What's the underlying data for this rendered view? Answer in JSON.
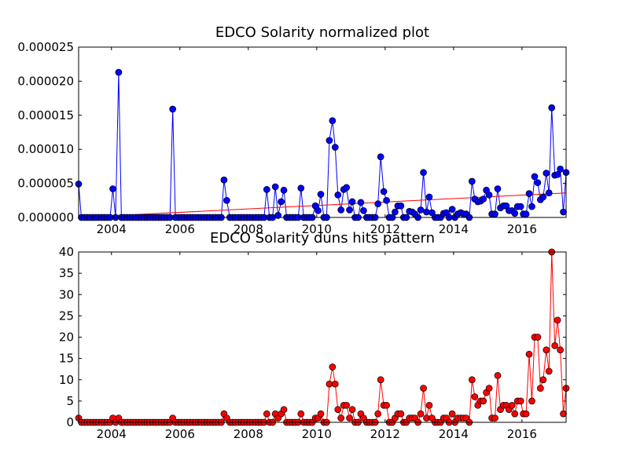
{
  "chart_data": [
    {
      "type": "line",
      "title": "EDCO Solarity normalized plot",
      "x": [
        2003.04,
        2003.12,
        2003.21,
        2003.29,
        2003.37,
        2003.46,
        2003.54,
        2003.62,
        2003.71,
        2003.79,
        2003.87,
        2003.96,
        2004.04,
        2004.12,
        2004.21,
        2004.29,
        2004.37,
        2004.46,
        2004.54,
        2004.62,
        2004.71,
        2004.79,
        2004.87,
        2004.96,
        2005.04,
        2005.12,
        2005.21,
        2005.29,
        2005.37,
        2005.46,
        2005.54,
        2005.62,
        2005.71,
        2005.79,
        2005.87,
        2005.96,
        2006.04,
        2006.12,
        2006.21,
        2006.29,
        2006.37,
        2006.46,
        2006.54,
        2006.62,
        2006.71,
        2006.79,
        2006.87,
        2006.96,
        2007.04,
        2007.12,
        2007.21,
        2007.29,
        2007.37,
        2007.46,
        2007.54,
        2007.62,
        2007.71,
        2007.79,
        2007.87,
        2007.96,
        2008.04,
        2008.12,
        2008.21,
        2008.29,
        2008.37,
        2008.46,
        2008.54,
        2008.62,
        2008.71,
        2008.79,
        2008.87,
        2008.96,
        2009.04,
        2009.12,
        2009.21,
        2009.29,
        2009.37,
        2009.46,
        2009.54,
        2009.62,
        2009.71,
        2009.79,
        2009.87,
        2009.96,
        2010.04,
        2010.12,
        2010.21,
        2010.29,
        2010.37,
        2010.46,
        2010.54,
        2010.62,
        2010.71,
        2010.79,
        2010.87,
        2010.96,
        2011.04,
        2011.12,
        2011.21,
        2011.29,
        2011.37,
        2011.46,
        2011.54,
        2011.62,
        2011.71,
        2011.79,
        2011.87,
        2011.96,
        2012.04,
        2012.12,
        2012.21,
        2012.29,
        2012.37,
        2012.46,
        2012.54,
        2012.62,
        2012.71,
        2012.79,
        2012.87,
        2012.96,
        2013.04,
        2013.12,
        2013.21,
        2013.29,
        2013.37,
        2013.46,
        2013.54,
        2013.62,
        2013.71,
        2013.79,
        2013.87,
        2013.96,
        2014.04,
        2014.12,
        2014.21,
        2014.29,
        2014.37,
        2014.46,
        2014.54,
        2014.62,
        2014.71,
        2014.79,
        2014.87,
        2014.96,
        2015.04,
        2015.12,
        2015.21,
        2015.29,
        2015.37,
        2015.46,
        2015.54,
        2015.62,
        2015.71,
        2015.79,
        2015.87,
        2015.96,
        2016.04,
        2016.12,
        2016.21,
        2016.29,
        2016.37,
        2016.46,
        2016.54,
        2016.62,
        2016.71,
        2016.79,
        2016.87,
        2016.96,
        2017.04,
        2017.12,
        2017.21,
        2017.29
      ],
      "series": [
        {
          "color": "#0000ff",
          "values": [
            4.9e-06,
            0,
            0,
            0,
            0,
            0,
            0,
            0,
            0,
            0,
            0,
            0,
            4.2e-06,
            0,
            2.13e-05,
            0,
            0,
            0,
            0,
            0,
            0,
            0,
            0,
            0,
            0,
            0,
            0,
            0,
            0,
            0,
            0,
            0,
            0,
            1.59e-05,
            0,
            0,
            0,
            0,
            0,
            0,
            0,
            0,
            0,
            0,
            0,
            0,
            0,
            0,
            0,
            0,
            0,
            5.5e-06,
            2.5e-06,
            0,
            0,
            0,
            0,
            0,
            0,
            0,
            0,
            0,
            0,
            0,
            0,
            0,
            4.1e-06,
            0,
            0,
            4.5e-06,
            3e-07,
            2.3e-06,
            4e-06,
            0,
            0,
            0,
            0,
            0,
            4.3e-06,
            0,
            0,
            0,
            0,
            1.7e-06,
            1e-06,
            3.4e-06,
            0,
            0,
            1.13e-05,
            1.42e-05,
            1.03e-05,
            3.3e-06,
            1.1e-06,
            4.1e-06,
            4.4e-06,
            1.1e-06,
            2.3e-06,
            0,
            0,
            2.2e-06,
            1e-06,
            0,
            0,
            0,
            0,
            2e-06,
            8.9e-06,
            3.8e-06,
            2.5e-06,
            0,
            0,
            8e-07,
            1.7e-06,
            1.7e-06,
            0,
            0,
            9e-07,
            8e-07,
            5e-07,
            0,
            1.1e-06,
            6.6e-06,
            8e-07,
            3e-06,
            7e-07,
            0,
            0,
            0,
            6e-07,
            7e-07,
            0,
            1.2e-06,
            0,
            5e-07,
            7e-07,
            5e-07,
            5e-07,
            0,
            5.3e-06,
            2.7e-06,
            2.3e-06,
            2.4e-06,
            2.7e-06,
            4e-06,
            3.3e-06,
            5e-07,
            5e-07,
            4.2e-06,
            1.4e-06,
            1.7e-06,
            1.7e-06,
            1e-06,
            1e-06,
            6e-07,
            1.6e-06,
            1.6e-06,
            5e-07,
            5e-07,
            3.5e-06,
            1.6e-06,
            6e-06,
            5.1e-06,
            2.6e-06,
            3e-06,
            6.5e-06,
            3.6e-06,
            1.61e-05,
            6.2e-06,
            6.3e-06,
            7.1e-06,
            8e-07,
            6.6e-06
          ]
        }
      ],
      "trend_line": {
        "color": "#ff0000",
        "x": [
          2003.04,
          2017.29
        ],
        "values": [
          0,
          3.6e-06
        ]
      },
      "xlim": [
        2003.04,
        2017.29
      ],
      "xticks": [
        2004,
        2006,
        2008,
        2010,
        2012,
        2014,
        2016
      ],
      "ylim": [
        0,
        2.5e-05
      ],
      "yticks": [
        {
          "value": 0,
          "label": "0.000000"
        },
        {
          "value": 5e-06,
          "label": "0.000005"
        },
        {
          "value": 1e-05,
          "label": "0.000010"
        },
        {
          "value": 1.5e-05,
          "label": "0.000015"
        },
        {
          "value": 2e-05,
          "label": "0.000020"
        },
        {
          "value": 2.5e-05,
          "label": "0.000025"
        }
      ]
    },
    {
      "type": "line",
      "title": "EDCO Solarity duns hits pattern",
      "x": [
        2003.04,
        2003.12,
        2003.21,
        2003.29,
        2003.37,
        2003.46,
        2003.54,
        2003.62,
        2003.71,
        2003.79,
        2003.87,
        2003.96,
        2004.04,
        2004.12,
        2004.21,
        2004.29,
        2004.37,
        2004.46,
        2004.54,
        2004.62,
        2004.71,
        2004.79,
        2004.87,
        2004.96,
        2005.04,
        2005.12,
        2005.21,
        2005.29,
        2005.37,
        2005.46,
        2005.54,
        2005.62,
        2005.71,
        2005.79,
        2005.87,
        2005.96,
        2006.04,
        2006.12,
        2006.21,
        2006.29,
        2006.37,
        2006.46,
        2006.54,
        2006.62,
        2006.71,
        2006.79,
        2006.87,
        2006.96,
        2007.04,
        2007.12,
        2007.21,
        2007.29,
        2007.37,
        2007.46,
        2007.54,
        2007.62,
        2007.71,
        2007.79,
        2007.87,
        2007.96,
        2008.04,
        2008.12,
        2008.21,
        2008.29,
        2008.37,
        2008.46,
        2008.54,
        2008.62,
        2008.71,
        2008.79,
        2008.87,
        2008.96,
        2009.04,
        2009.12,
        2009.21,
        2009.29,
        2009.37,
        2009.46,
        2009.54,
        2009.62,
        2009.71,
        2009.79,
        2009.87,
        2009.96,
        2010.04,
        2010.12,
        2010.21,
        2010.29,
        2010.37,
        2010.46,
        2010.54,
        2010.62,
        2010.71,
        2010.79,
        2010.87,
        2010.96,
        2011.04,
        2011.12,
        2011.21,
        2011.29,
        2011.37,
        2011.46,
        2011.54,
        2011.62,
        2011.71,
        2011.79,
        2011.87,
        2011.96,
        2012.04,
        2012.12,
        2012.21,
        2012.29,
        2012.37,
        2012.46,
        2012.54,
        2012.62,
        2012.71,
        2012.79,
        2012.87,
        2012.96,
        2013.04,
        2013.12,
        2013.21,
        2013.29,
        2013.37,
        2013.46,
        2013.54,
        2013.62,
        2013.71,
        2013.79,
        2013.87,
        2013.96,
        2014.04,
        2014.12,
        2014.21,
        2014.29,
        2014.37,
        2014.46,
        2014.54,
        2014.62,
        2014.71,
        2014.79,
        2014.87,
        2014.96,
        2015.04,
        2015.12,
        2015.21,
        2015.29,
        2015.37,
        2015.46,
        2015.54,
        2015.62,
        2015.71,
        2015.79,
        2015.87,
        2015.96,
        2016.04,
        2016.12,
        2016.21,
        2016.29,
        2016.37,
        2016.46,
        2016.54,
        2016.62,
        2016.71,
        2016.79,
        2016.87,
        2016.96,
        2017.04,
        2017.12,
        2017.21,
        2017.29
      ],
      "series": [
        {
          "color": "#ff0000",
          "values": [
            1,
            0,
            0,
            0,
            0,
            0,
            0,
            0,
            0,
            0,
            0,
            0,
            1,
            0,
            1,
            0,
            0,
            0,
            0,
            0,
            0,
            0,
            0,
            0,
            0,
            0,
            0,
            0,
            0,
            0,
            0,
            0,
            0,
            1,
            0,
            0,
            0,
            0,
            0,
            0,
            0,
            0,
            0,
            0,
            0,
            0,
            0,
            0,
            0,
            0,
            0,
            2,
            1,
            0,
            0,
            0,
            0,
            0,
            0,
            0,
            0,
            0,
            0,
            0,
            0,
            0,
            2,
            0,
            0,
            2,
            1,
            2,
            3,
            0,
            0,
            0,
            0,
            0,
            2,
            0,
            0,
            0,
            0,
            1,
            1,
            2,
            0,
            0,
            9,
            13,
            9,
            3,
            1,
            4,
            4,
            1,
            3,
            0,
            0,
            2,
            1,
            0,
            0,
            0,
            0,
            2,
            10,
            4,
            4,
            0,
            0,
            1,
            2,
            2,
            0,
            0,
            1,
            1,
            1,
            0,
            2,
            8,
            1,
            4,
            1,
            0,
            0,
            0,
            1,
            1,
            0,
            2,
            0,
            1,
            1,
            1,
            1,
            0,
            10,
            6,
            4,
            5,
            5,
            7,
            8,
            1,
            1,
            11,
            3,
            4,
            4,
            3,
            4,
            2,
            5,
            5,
            2,
            2,
            16,
            5,
            20,
            20,
            8,
            10,
            17,
            12,
            40,
            18,
            24,
            17,
            2,
            8
          ]
        }
      ],
      "xlim": [
        2003.04,
        2017.29
      ],
      "xticks": [
        2004,
        2006,
        2008,
        2010,
        2012,
        2014,
        2016
      ],
      "ylim": [
        0,
        40
      ],
      "yticks": [
        0,
        5,
        10,
        15,
        20,
        25,
        30,
        35,
        40
      ]
    }
  ]
}
